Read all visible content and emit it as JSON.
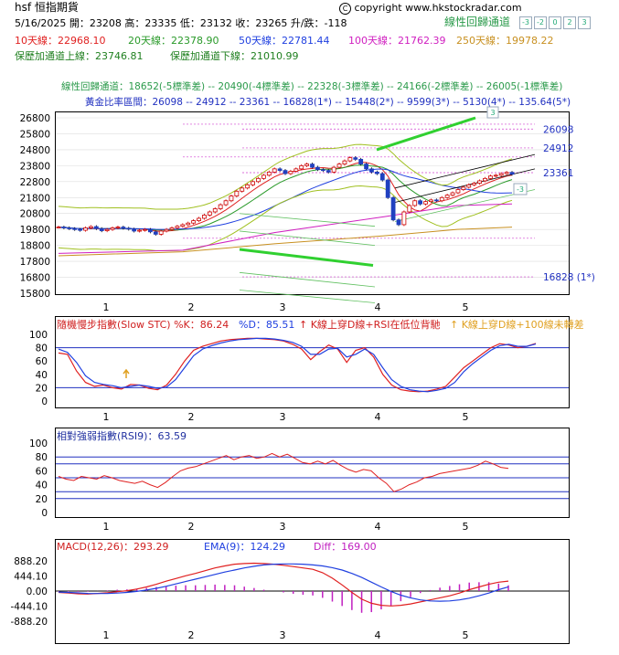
{
  "header": {
    "title": "hsf 恒指期貨",
    "date_prices": "5/16/2025 開：23208 高：23335 低：23132 收：23265 升/跌：-118",
    "copyright": "copyright www.hkstockradar.com",
    "copyright_symbol": "C",
    "regression_label": "線性回歸通道",
    "regression_buttons": [
      "-3",
      "-2",
      "0",
      "2",
      "3"
    ]
  },
  "ma_lines": [
    {
      "text": "10天線：22968.10",
      "color": "#e02020"
    },
    {
      "text": "20天線：22378.90",
      "color": "#2a9a2a"
    },
    {
      "text": "50天線：22781.44",
      "color": "#2040e0"
    },
    {
      "text": "100天線：21762.39",
      "color": "#d020c0"
    },
    {
      "text": "250天線：19978.22",
      "color": "#c89020"
    }
  ],
  "bands": {
    "upper": "保歷加通道上線：23746.81",
    "lower": "保歷加通道下線：21010.99"
  },
  "regression_line": "線性回歸通道：18652(-5標準差) -- 20490(-4標準差) -- 22328(-3標準差) -- 24166(-2標準差) -- 26005(-1標準差)",
  "golden_line": "黃金比率區間：26098 -- 24912 -- 23361 -- 16828(1*) -- 15448(2*) -- 9599(3*) -- 5130(4*) -- 135.64(5*)",
  "price_panel": {
    "y_ticks": [
      "26800",
      "25800",
      "24800",
      "23800",
      "22800",
      "21800",
      "20800",
      "19800",
      "18800",
      "17800",
      "16800",
      "15800"
    ],
    "x_ticks": [
      "1",
      "2",
      "3",
      "4",
      "5"
    ],
    "fib_labels": [
      "26098",
      "24912",
      "23361",
      "16828 (1*)"
    ],
    "channel_badge": "-3",
    "top_badge": "3"
  },
  "stoch_panel": {
    "title": "隨機慢步指數(Slow STC) %K：86.24",
    "d_label": "%D：85.51",
    "signal1": "K線上穿D線+RSI在低位背馳",
    "signal2": "K線上穿D線+100線未轉差",
    "y_ticks": [
      "100",
      "80",
      "60",
      "40",
      "20",
      "0"
    ]
  },
  "rsi_panel": {
    "title": "相對強弱指數(RSI9)：63.59",
    "y_ticks": [
      "100",
      "80",
      "60",
      "40",
      "20",
      "0"
    ]
  },
  "macd_panel": {
    "macd_label": "MACD(12,26)：293.29",
    "ema_label": "EMA(9)：124.29",
    "diff_label": "Diff：169.00",
    "y_ticks": [
      "888.20",
      "444.10",
      "0.00",
      "-444.10",
      "-888.20"
    ]
  },
  "chart_data": [
    {
      "type": "candlestick",
      "title": "hsf 恒指期貨",
      "ylim": [
        15800,
        26800
      ],
      "last_close": 23265,
      "close_series": [
        19950,
        19900,
        19850,
        19800,
        19750,
        19900,
        19980,
        19850,
        19720,
        19800,
        19900,
        19950,
        19880,
        19820,
        19700,
        19750,
        19800,
        19650,
        19500,
        19700,
        19800,
        19900,
        20000,
        20100,
        20200,
        20350,
        20500,
        20700,
        20900,
        21100,
        21350,
        21600,
        21900,
        22200,
        22400,
        22600,
        22800,
        23000,
        23200,
        23400,
        23600,
        23500,
        23300,
        23450,
        23600,
        23800,
        23900,
        23700,
        23550,
        23500,
        23400,
        23700,
        23900,
        24100,
        24300,
        24200,
        23900,
        23600,
        23400,
        23300,
        22900,
        21800,
        20400,
        20100,
        20900,
        21300,
        21600,
        21400,
        21550,
        21650,
        21600,
        21800,
        21950,
        22100,
        22300,
        22450,
        22600,
        22700,
        22850,
        23000,
        23150,
        23200,
        23300,
        23380,
        23265
      ]
    },
    {
      "type": "line",
      "title": "隨機慢步指數(Slow STC)",
      "ylim": [
        0,
        100
      ],
      "series": [
        {
          "name": "%K",
          "values": [
            72,
            70,
            45,
            28,
            22,
            24,
            20,
            18,
            25,
            24,
            19,
            17,
            24,
            40,
            60,
            76,
            82,
            86,
            90,
            92,
            93,
            94,
            94,
            93,
            92,
            90,
            85,
            78,
            62,
            74,
            84,
            78,
            58,
            76,
            80,
            66,
            40,
            24,
            17,
            15,
            14,
            15,
            18,
            22,
            36,
            50,
            60,
            70,
            80,
            86,
            84,
            80,
            82,
            86.24
          ]
        },
        {
          "name": "%D",
          "values": [
            78,
            73,
            58,
            38,
            28,
            25,
            23,
            20,
            22,
            24,
            22,
            19,
            21,
            32,
            50,
            68,
            78,
            83,
            87,
            90,
            92,
            93,
            94,
            94,
            93,
            91,
            88,
            82,
            70,
            70,
            78,
            79,
            66,
            70,
            78,
            70,
            50,
            32,
            22,
            17,
            15,
            14,
            16,
            19,
            28,
            44,
            56,
            66,
            76,
            83,
            85,
            82,
            82,
            85.51
          ]
        }
      ]
    },
    {
      "type": "line",
      "title": "相對強弱指數(RSI9)",
      "ylim": [
        0,
        100
      ],
      "series": [
        {
          "name": "RSI9",
          "values": [
            52,
            48,
            46,
            52,
            50,
            48,
            53,
            50,
            46,
            44,
            42,
            45,
            40,
            36,
            43,
            52,
            60,
            64,
            66,
            70,
            74,
            78,
            82,
            76,
            80,
            82,
            78,
            80,
            85,
            80,
            84,
            78,
            72,
            70,
            74,
            70,
            75,
            68,
            62,
            58,
            62,
            60,
            50,
            42,
            30,
            34,
            40,
            44,
            50,
            52,
            56,
            58,
            60,
            62,
            64,
            68,
            74,
            70,
            65,
            63.59
          ]
        }
      ]
    },
    {
      "type": "line",
      "title": "MACD",
      "ylim": [
        -888.2,
        888.2
      ],
      "series": [
        {
          "name": "MACD(12,26)",
          "values": [
            -40,
            -60,
            -80,
            -90,
            -70,
            -50,
            -20,
            10,
            60,
            120,
            200,
            290,
            370,
            450,
            520,
            600,
            680,
            740,
            790,
            810,
            820,
            810,
            790,
            760,
            720,
            680,
            640,
            540,
            380,
            180,
            -40,
            -240,
            -360,
            -420,
            -440,
            -420,
            -380,
            -320,
            -260,
            -200,
            -140,
            -60,
            40,
            120,
            200,
            260,
            293.29
          ]
        },
        {
          "name": "EMA(9)",
          "values": [
            -30,
            -40,
            -55,
            -70,
            -72,
            -70,
            -60,
            -40,
            -10,
            30,
            80,
            140,
            210,
            280,
            350,
            420,
            490,
            560,
            620,
            680,
            730,
            770,
            790,
            800,
            800,
            790,
            770,
            740,
            690,
            620,
            520,
            400,
            260,
            120,
            -10,
            -120,
            -200,
            -260,
            -290,
            -300,
            -290,
            -260,
            -210,
            -140,
            -60,
            40,
            124.29
          ]
        }
      ]
    }
  ]
}
